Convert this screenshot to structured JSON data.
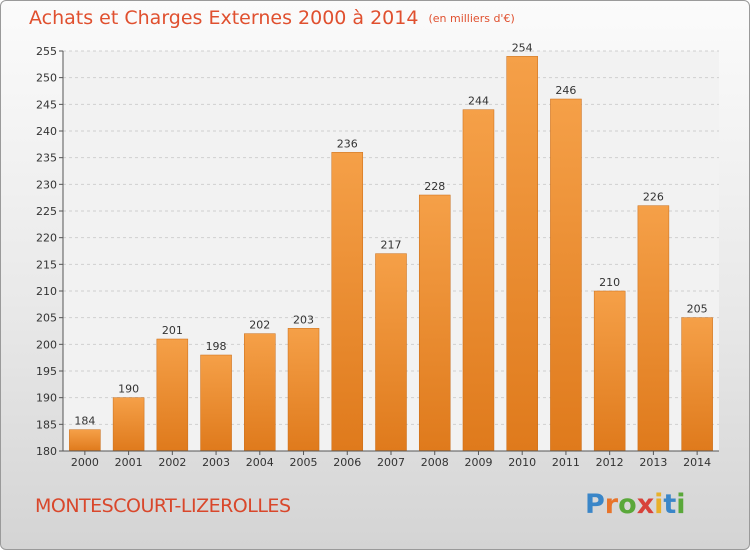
{
  "header": {
    "title": "Achats et Charges Externes 2000 à 2014",
    "unit": "(en milliers d'€)"
  },
  "footer": {
    "town": "MONTESCOURT-LIZEROLLES",
    "logo_letters": [
      "P",
      "r",
      "o",
      "x",
      "i",
      "t",
      "i"
    ],
    "logo_colors": [
      "#3a86c8",
      "#e8742a",
      "#5aa83a",
      "#d8423a",
      "#e8b02a",
      "#3a86c8",
      "#5aa83a"
    ]
  },
  "chart_data": {
    "type": "bar",
    "categories": [
      "2000",
      "2001",
      "2002",
      "2003",
      "2004",
      "2005",
      "2006",
      "2007",
      "2008",
      "2009",
      "2010",
      "2011",
      "2012",
      "2013",
      "2014"
    ],
    "values": [
      184,
      190,
      201,
      198,
      202,
      203,
      236,
      217,
      228,
      244,
      254,
      246,
      210,
      226,
      205
    ],
    "ylim": [
      180,
      255
    ],
    "yticks": [
      180,
      185,
      190,
      195,
      200,
      205,
      210,
      215,
      220,
      225,
      230,
      235,
      240,
      245,
      250,
      255
    ],
    "grid": true,
    "bar_color_top": "#f5a048",
    "bar_color_bottom": "#df7a1c",
    "title": "Achats et Charges Externes 2000 à 2014",
    "xlabel": "",
    "ylabel": ""
  }
}
